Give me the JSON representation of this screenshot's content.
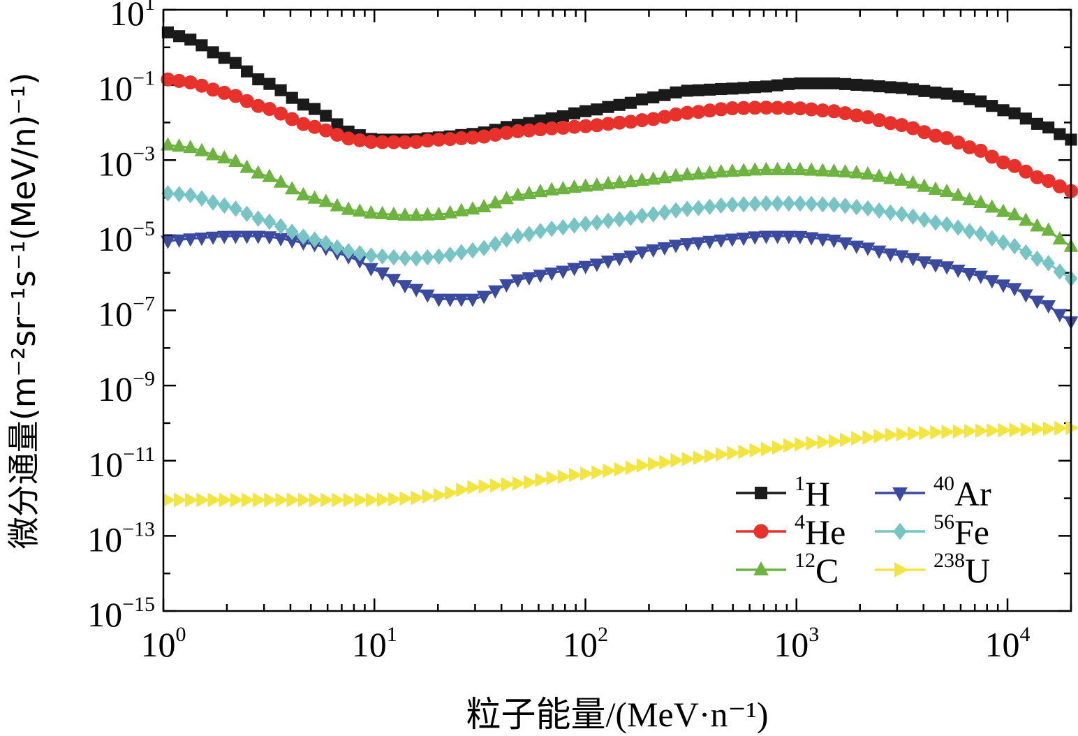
{
  "chart_data": {
    "type": "line",
    "title": "",
    "xlabel": "粒子能量/(MeV·n⁻¹)",
    "ylabel": "微分通量(m⁻²sr⁻¹s⁻¹(MeV/n)⁻¹)",
    "xscale": "log",
    "yscale": "log",
    "xlim": [
      1,
      20000
    ],
    "ylim": [
      1e-15,
      10
    ],
    "x_ticks": [
      {
        "value": 1,
        "base": "10",
        "exp": "0"
      },
      {
        "value": 10,
        "base": "10",
        "exp": "1"
      },
      {
        "value": 100,
        "base": "10",
        "exp": "2"
      },
      {
        "value": 1000,
        "base": "10",
        "exp": "3"
      },
      {
        "value": 10000,
        "base": "10",
        "exp": "4"
      }
    ],
    "y_ticks": [
      {
        "value": 1e-15,
        "base": "10",
        "exp": "−15"
      },
      {
        "value": 1e-13,
        "base": "10",
        "exp": "−13"
      },
      {
        "value": 1e-11,
        "base": "10",
        "exp": "−11"
      },
      {
        "value": 1e-09,
        "base": "10",
        "exp": "−9"
      },
      {
        "value": 1e-07,
        "base": "10",
        "exp": "−7"
      },
      {
        "value": 1e-05,
        "base": "10",
        "exp": "−5"
      },
      {
        "value": 0.001,
        "base": "10",
        "exp": "−3"
      },
      {
        "value": 0.1,
        "base": "10",
        "exp": "−1"
      },
      {
        "value": 10,
        "base": "10",
        "exp": "1"
      }
    ],
    "legend_position": "bottom-right",
    "series": [
      {
        "name": "1H",
        "mass": "1",
        "element": "H",
        "color": "#1a1a1a",
        "marker": "square",
        "x": [
          1.05,
          1.3,
          2,
          3,
          5,
          8,
          10,
          15,
          20,
          30,
          50,
          70,
          100,
          150,
          200,
          300,
          500,
          700,
          1000,
          1500,
          2000,
          3000,
          5000,
          7000,
          10000,
          15000,
          20000
        ],
        "y": [
          2.5,
          1.7,
          0.5,
          0.12,
          0.025,
          0.005,
          0.0035,
          0.0035,
          0.004,
          0.005,
          0.009,
          0.013,
          0.02,
          0.03,
          0.045,
          0.07,
          0.08,
          0.09,
          0.11,
          0.11,
          0.1,
          0.085,
          0.06,
          0.04,
          0.02,
          0.008,
          0.0035
        ]
      },
      {
        "name": "4He",
        "mass": "4",
        "element": "He",
        "color": "#e8312a",
        "marker": "circle",
        "x": [
          1.05,
          1.3,
          2,
          3,
          5,
          8,
          10,
          15,
          20,
          30,
          50,
          70,
          100,
          150,
          200,
          300,
          500,
          700,
          1000,
          1500,
          2000,
          3000,
          5000,
          7000,
          10000,
          15000,
          20000
        ],
        "y": [
          0.14,
          0.12,
          0.06,
          0.025,
          0.008,
          0.0035,
          0.003,
          0.003,
          0.0035,
          0.004,
          0.006,
          0.007,
          0.008,
          0.01,
          0.012,
          0.018,
          0.024,
          0.025,
          0.024,
          0.02,
          0.015,
          0.009,
          0.004,
          0.002,
          0.0008,
          0.0003,
          0.00015
        ]
      },
      {
        "name": "12C",
        "mass": "12",
        "element": "C",
        "color": "#6db33f",
        "marker": "triangle-up",
        "x": [
          1.05,
          1.3,
          2,
          3,
          5,
          8,
          10,
          15,
          20,
          30,
          50,
          70,
          100,
          150,
          200,
          300,
          500,
          700,
          1000,
          1500,
          2000,
          3000,
          5000,
          7000,
          10000,
          15000,
          20000
        ],
        "y": [
          0.0025,
          0.0022,
          0.0011,
          0.0004,
          0.0001,
          4.5e-05,
          3.8e-05,
          3.3e-05,
          3.5e-05,
          5e-05,
          0.00012,
          0.00016,
          0.0002,
          0.00025,
          0.0003,
          0.0004,
          0.0005,
          0.00055,
          0.00055,
          0.0005,
          0.00045,
          0.0003,
          0.00015,
          8e-05,
          4e-05,
          1.5e-05,
          5e-06
        ]
      },
      {
        "name": "40Ar",
        "mass": "40",
        "element": "Ar",
        "color": "#3a4a9e",
        "marker": "triangle-down",
        "x": [
          1.05,
          1.3,
          2,
          3,
          5,
          8,
          10,
          15,
          20,
          30,
          50,
          70,
          100,
          150,
          200,
          300,
          500,
          700,
          1000,
          1500,
          2000,
          3000,
          5000,
          7000,
          10000,
          15000,
          20000
        ],
        "y": [
          7e-06,
          8e-06,
          9.5e-06,
          9.5e-06,
          6e-06,
          2.5e-06,
          1.2e-06,
          4e-07,
          2e-07,
          2e-07,
          7e-07,
          1e-06,
          1.5e-06,
          2.5e-06,
          4e-06,
          6e-06,
          8e-06,
          9.5e-06,
          9.5e-06,
          7.5e-06,
          5e-06,
          3e-06,
          1.5e-06,
          9e-07,
          4.5e-07,
          1.5e-07,
          5e-08
        ]
      },
      {
        "name": "56Fe",
        "mass": "56",
        "element": "Fe",
        "color": "#77c4c4",
        "marker": "diamond",
        "x": [
          1.05,
          1.3,
          2,
          3,
          5,
          8,
          10,
          15,
          20,
          30,
          50,
          70,
          100,
          150,
          200,
          300,
          500,
          700,
          1000,
          1500,
          2000,
          3000,
          5000,
          7000,
          10000,
          15000,
          20000
        ],
        "y": [
          0.00013,
          0.00012,
          6e-05,
          2.5e-05,
          8e-06,
          3.5e-06,
          2.8e-06,
          2.4e-06,
          2.7e-06,
          4e-06,
          1e-05,
          1.5e-05,
          2e-05,
          2.7e-05,
          3.5e-05,
          5e-05,
          6.5e-05,
          7e-05,
          7e-05,
          6.5e-05,
          5.5e-05,
          3.8e-05,
          2e-05,
          1.2e-05,
          6e-06,
          2e-06,
          7e-07
        ]
      },
      {
        "name": "238U",
        "mass": "238",
        "element": "U",
        "color": "#f2e540",
        "marker": "triangle-right",
        "x": [
          1.05,
          1.3,
          2,
          3,
          5,
          8,
          10,
          15,
          20,
          30,
          50,
          70,
          100,
          150,
          200,
          300,
          500,
          700,
          1000,
          1500,
          2000,
          3000,
          5000,
          7000,
          10000,
          15000,
          20000
        ],
        "y": [
          9e-13,
          9e-13,
          9e-13,
          9e-13,
          9e-13,
          9e-13,
          9e-13,
          1e-12,
          1.2e-12,
          2e-12,
          2.5e-12,
          3.5e-12,
          4.5e-12,
          6e-12,
          8e-12,
          1.1e-11,
          1.6e-11,
          2e-11,
          2.7e-11,
          3.3e-11,
          4e-11,
          5e-11,
          5.8e-11,
          6.2e-11,
          6.5e-11,
          7e-11,
          7.5e-11
        ]
      }
    ]
  }
}
